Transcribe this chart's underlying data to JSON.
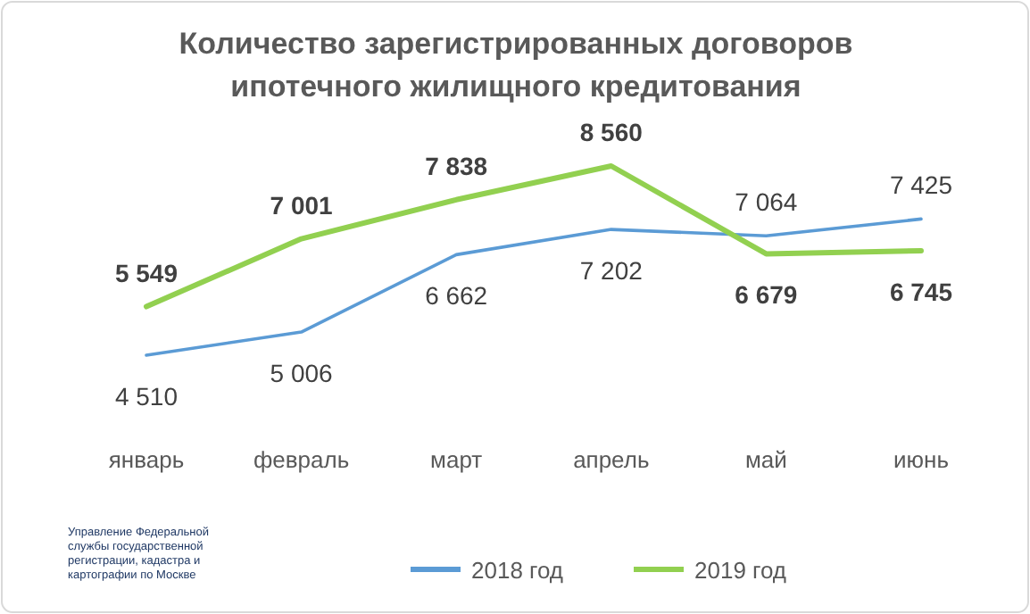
{
  "chart_data": {
    "type": "line",
    "title": "Количество зарегистрированных договоров ипотечного жилищного кредитования",
    "categories": [
      "январь",
      "февраль",
      "март",
      "апрель",
      "май",
      "июнь"
    ],
    "series": [
      {
        "name": "2018 год",
        "color": "#5b9bd5",
        "values": [
          4510,
          5006,
          6662,
          7202,
          7064,
          7425
        ]
      },
      {
        "name": "2019 год",
        "color": "#92d050",
        "values": [
          5549,
          7001,
          7838,
          8560,
          6679,
          6745
        ]
      }
    ],
    "data_labels": true,
    "legend": "bottom",
    "annotations": [
      "Управление Федеральной службы государственной регистрации, кадастра и картографии по Москве"
    ]
  }
}
